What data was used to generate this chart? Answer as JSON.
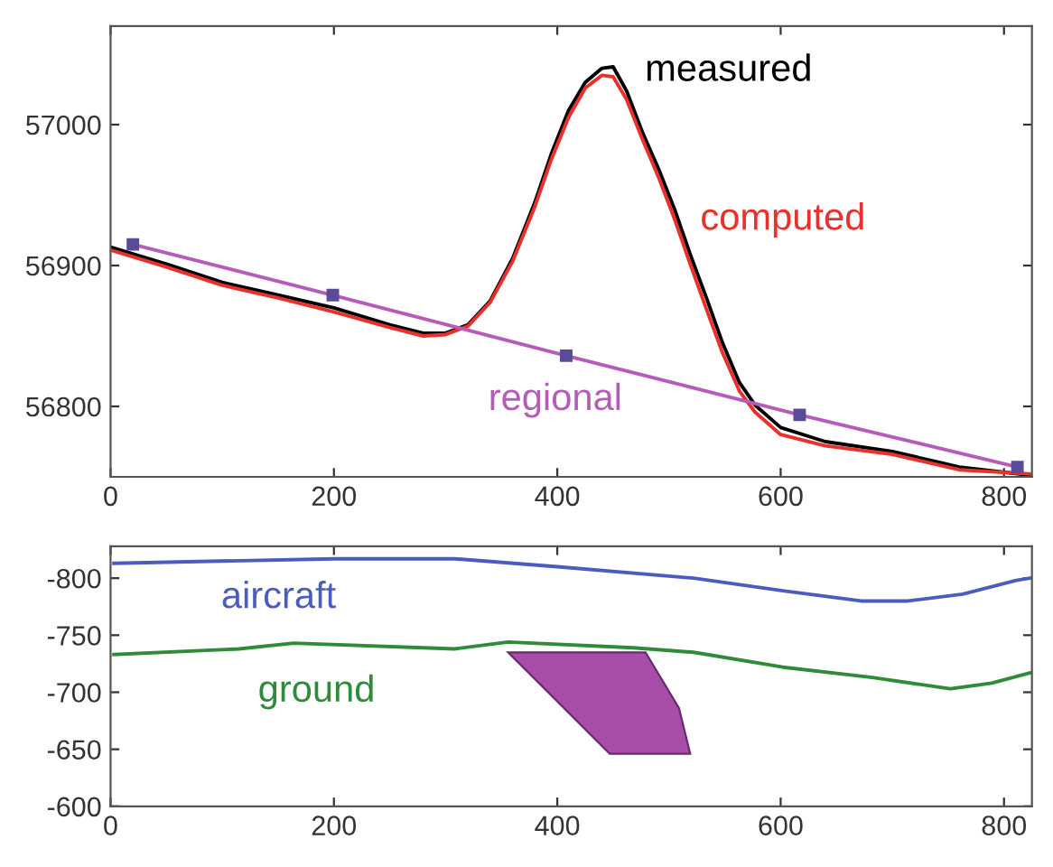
{
  "chart_data": [
    {
      "type": "line",
      "xlim": [
        0,
        825
      ],
      "xticks": [
        0,
        200,
        400,
        600,
        800
      ],
      "ylim": [
        56750,
        57070
      ],
      "yticks": [
        56800,
        56900,
        57000
      ],
      "grid": false,
      "legend": false,
      "series": [
        {
          "name": "measured",
          "color": "#000000",
          "x": [
            0,
            50,
            100,
            150,
            200,
            250,
            280,
            300,
            320,
            340,
            360,
            380,
            395,
            410,
            425,
            440,
            450,
            462,
            476,
            491,
            505,
            519,
            534,
            548,
            563,
            577,
            600,
            640,
            700,
            760,
            825
          ],
          "values": [
            56913,
            56901,
            56888,
            56879,
            56870,
            56858,
            56852,
            56852,
            56858,
            56875,
            56905,
            56945,
            56980,
            57010,
            57030,
            57040,
            57041,
            57024,
            56995,
            56968,
            56940,
            56908,
            56876,
            56845,
            56817,
            56801,
            56785,
            56775,
            56768,
            56757,
            56751
          ]
        },
        {
          "name": "computed",
          "color": "#e8312a",
          "x": [
            0,
            50,
            100,
            150,
            200,
            250,
            280,
            300,
            320,
            340,
            360,
            380,
            395,
            410,
            425,
            440,
            450,
            462,
            476,
            491,
            505,
            519,
            534,
            548,
            563,
            577,
            600,
            640,
            700,
            760,
            825
          ],
          "values": [
            56911,
            56899,
            56886,
            56877,
            56867,
            56856,
            56850,
            56851,
            56857,
            56874,
            56903,
            56942,
            56976,
            57005,
            57026,
            57035,
            57034,
            57018,
            56990,
            56962,
            56933,
            56901,
            56868,
            56838,
            56811,
            56796,
            56780,
            56772,
            56766,
            56755,
            56752
          ]
        },
        {
          "name": "regional",
          "color": "#b55cb8",
          "marker": "square",
          "x": [
            20,
            199,
            408,
            617,
            812
          ],
          "values": [
            56915,
            56879,
            56836,
            56794,
            56757
          ]
        }
      ]
    },
    {
      "type": "line",
      "xlim": [
        0,
        825
      ],
      "xticks": [
        0,
        200,
        400,
        600,
        800
      ],
      "ylim": [
        -600,
        -828
      ],
      "yticks": [
        -800,
        -750,
        -700,
        -650,
        -600
      ],
      "grid": false,
      "legend": false,
      "series": [
        {
          "name": "aircraft",
          "color": "#4a5cc0",
          "x": [
            3,
            201,
            308,
            400,
            522,
            602,
            672,
            714,
            763,
            811,
            823
          ],
          "values": [
            -813,
            -817,
            -817,
            -810,
            -800,
            -789,
            -780,
            -780,
            -786,
            -798,
            -800
          ]
        },
        {
          "name": "ground",
          "color": "#2f8a3a",
          "x": [
            3,
            115,
            164,
            308,
            356,
            468,
            522,
            602,
            682,
            752,
            789,
            823
          ],
          "values": [
            -733,
            -738,
            -743,
            -738,
            -744,
            -739,
            -735,
            -722,
            -713,
            -703,
            -708,
            -717
          ]
        },
        {
          "type": "area",
          "color": "#a84ea8",
          "x": [
            356,
            479,
            509,
            519,
            447
          ],
          "values": [
            -735,
            -735,
            -686,
            -646,
            -646
          ]
        }
      ]
    }
  ]
}
